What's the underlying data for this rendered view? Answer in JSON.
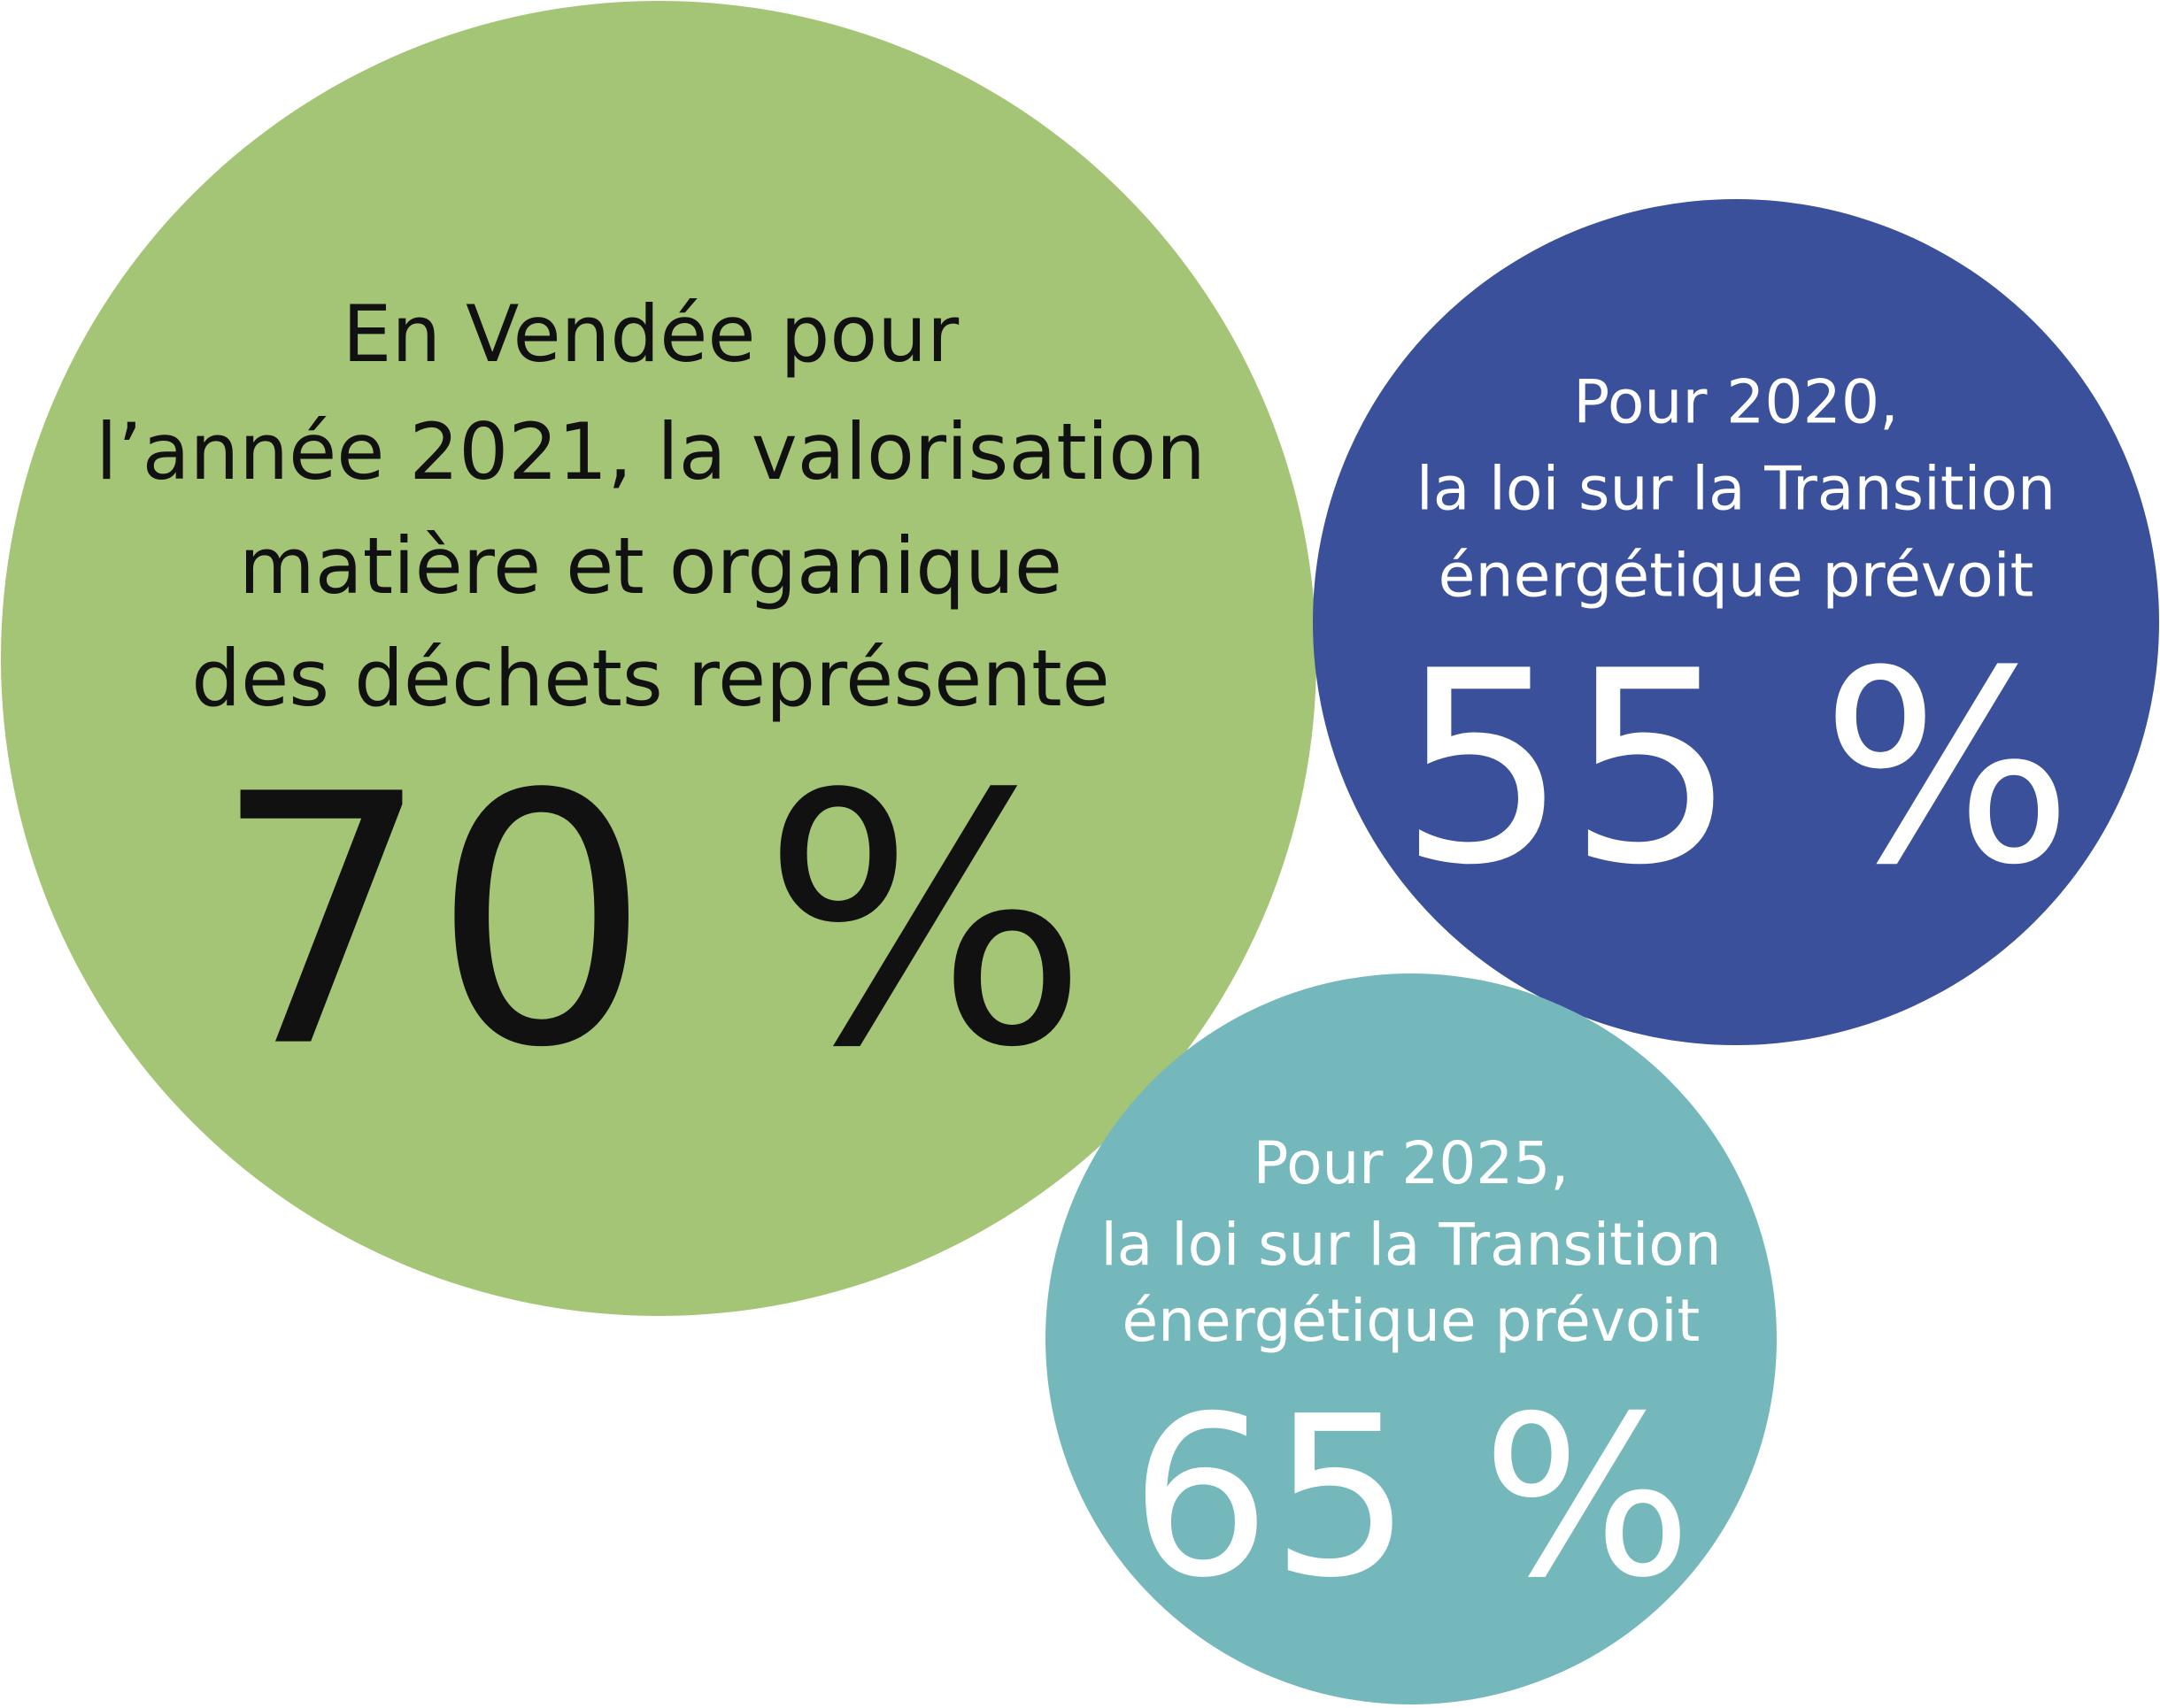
{
  "bubbles": [
    {
      "lines": [
        "En Vendée pour",
        "l’année 2021, la valorisation",
        "matière et organique",
        "des déchets représente"
      ],
      "value": "70 %"
    },
    {
      "lines": [
        "Pour 2020,",
        "la loi sur la Transition",
        "énergétique prévoit"
      ],
      "value": "55 %"
    },
    {
      "lines": [
        "Pour 2025,",
        "la loi sur la Transition",
        "énergétique prévoit"
      ],
      "value": "65 %"
    }
  ]
}
